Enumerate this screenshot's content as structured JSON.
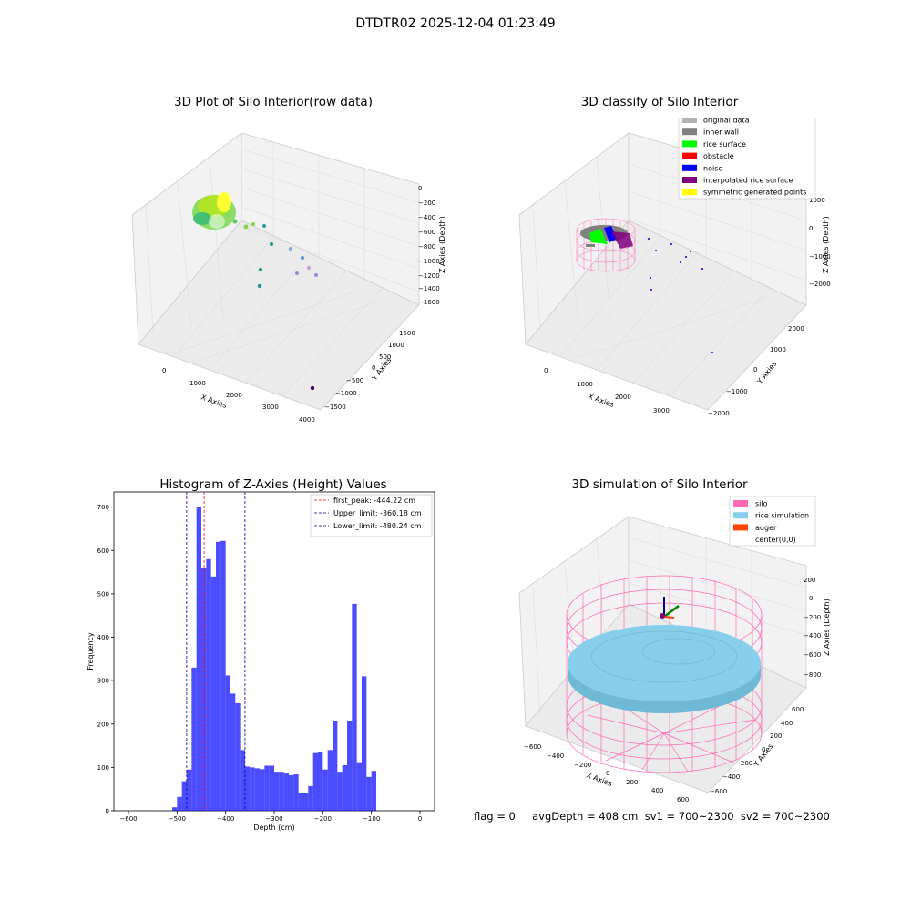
{
  "suptitle": "DTDTR02 2025-12-04 01:23:49",
  "footer": "flag = 0     avgDepth = 408 cm  sv1 = 700~2300  sv2 = 700~2300",
  "colors": {
    "hist_bar": "#0000ff",
    "peak_line": "#ff0000",
    "limit_line": "#00008b",
    "silo": "#ff69b4",
    "rice": "#87ceeb",
    "auger": "#ff4500",
    "pane": "#f2f2f2",
    "grid": "#d9d9d9"
  },
  "panels": {
    "raw": {
      "title": "3D Plot of Silo Interior(row data)",
      "xlabel": "X Axies",
      "ylabel": "Y Axies",
      "zlabel": "Z Axies (Depth)",
      "xticks": [
        "0",
        "1000",
        "2000",
        "3000",
        "4000"
      ],
      "yticks": [
        "1500",
        "1000",
        "500",
        "0",
        "−500",
        "−1000",
        "−1500"
      ],
      "zticks": [
        "0",
        "−200",
        "−400",
        "−600",
        "−800",
        "−1000",
        "−1200",
        "−1400",
        "−1600"
      ]
    },
    "classify": {
      "title": "3D classify of Silo Interior",
      "xlabel": "X Axies",
      "ylabel": "Y Axies",
      "zlabel": "Z Axies (Depth)",
      "xticks": [
        "0",
        "1000",
        "2000",
        "3000"
      ],
      "yticks": [
        "2000",
        "1000",
        "0",
        "−1000",
        "−2000"
      ],
      "zticks": [
        "1000",
        "0",
        "−1000",
        "−2000"
      ],
      "legend": [
        {
          "label": "original data",
          "color": "#b3b3b3"
        },
        {
          "label": "inner wall",
          "color": "#808080"
        },
        {
          "label": "rice surface",
          "color": "#00ff00"
        },
        {
          "label": "obstacle",
          "color": "#ff0000"
        },
        {
          "label": "noise",
          "color": "#0000ff"
        },
        {
          "label": "interpolated rice surface",
          "color": "#800080"
        },
        {
          "label": "symmetric generated points",
          "color": "#ffff00"
        }
      ]
    },
    "simulation": {
      "title": "3D simulation of Silo Interior",
      "xlabel": "X Axies",
      "ylabel": "Y Axies",
      "zlabel": "Z Axies (Depth)",
      "xticks": [
        "−600",
        "−400",
        "−200",
        "0",
        "200",
        "400",
        "600"
      ],
      "yticks": [
        "600",
        "400",
        "200",
        "0",
        "−200",
        "−400",
        "−600"
      ],
      "zticks": [
        "200",
        "0",
        "−200",
        "−400",
        "−600",
        "−800"
      ],
      "legend": [
        {
          "label": "silo",
          "color": "#ff69b4"
        },
        {
          "label": "rice simulation",
          "color": "#87ceeb"
        },
        {
          "label": "auger",
          "color": "#ff4500"
        },
        {
          "label": "center(0,0)",
          "color": "#ffffff"
        }
      ]
    }
  },
  "chart_data": {
    "type": "bar",
    "title": "Histogram of Z-Axies (Height) Values",
    "xlabel": "Depth (cm)",
    "ylabel": "Frequency",
    "xlim": [
      -630,
      30
    ],
    "ylim": [
      0,
      735
    ],
    "xticks": [
      -600,
      -500,
      -400,
      -300,
      -200,
      -100,
      0
    ],
    "yticks": [
      0,
      100,
      200,
      300,
      400,
      500,
      600,
      700
    ],
    "bin_width": 10,
    "bins": [
      [
        -510,
        8
      ],
      [
        -500,
        32
      ],
      [
        -490,
        68
      ],
      [
        -480,
        95
      ],
      [
        -470,
        330
      ],
      [
        -460,
        700
      ],
      [
        -450,
        560
      ],
      [
        -440,
        580
      ],
      [
        -430,
        540
      ],
      [
        -420,
        620
      ],
      [
        -410,
        622
      ],
      [
        -400,
        312
      ],
      [
        -390,
        270
      ],
      [
        -380,
        248
      ],
      [
        -370,
        140
      ],
      [
        -360,
        102
      ],
      [
        -350,
        100
      ],
      [
        -340,
        98
      ],
      [
        -330,
        96
      ],
      [
        -320,
        104
      ],
      [
        -310,
        104
      ],
      [
        -300,
        90
      ],
      [
        -290,
        90
      ],
      [
        -280,
        86
      ],
      [
        -270,
        82
      ],
      [
        -260,
        84
      ],
      [
        -250,
        40
      ],
      [
        -240,
        42
      ],
      [
        -230,
        57
      ],
      [
        -220,
        133
      ],
      [
        -210,
        135
      ],
      [
        -200,
        95
      ],
      [
        -190,
        140
      ],
      [
        -180,
        208
      ],
      [
        -170,
        90
      ],
      [
        -160,
        105
      ],
      [
        -150,
        208
      ],
      [
        -140,
        477
      ],
      [
        -130,
        112
      ],
      [
        -120,
        310
      ],
      [
        -110,
        78
      ],
      [
        -100,
        92
      ]
    ],
    "vlines": [
      {
        "label": "first_peak: -444.22 cm",
        "x": -444.22,
        "color": "#ff0000"
      },
      {
        "label": "Upper_limit: -360.18 cm",
        "x": -360.18,
        "color": "#00008b"
      },
      {
        "label": "Lower_limit: -480.24 cm",
        "x": -480.24,
        "color": "#00008b"
      }
    ]
  }
}
